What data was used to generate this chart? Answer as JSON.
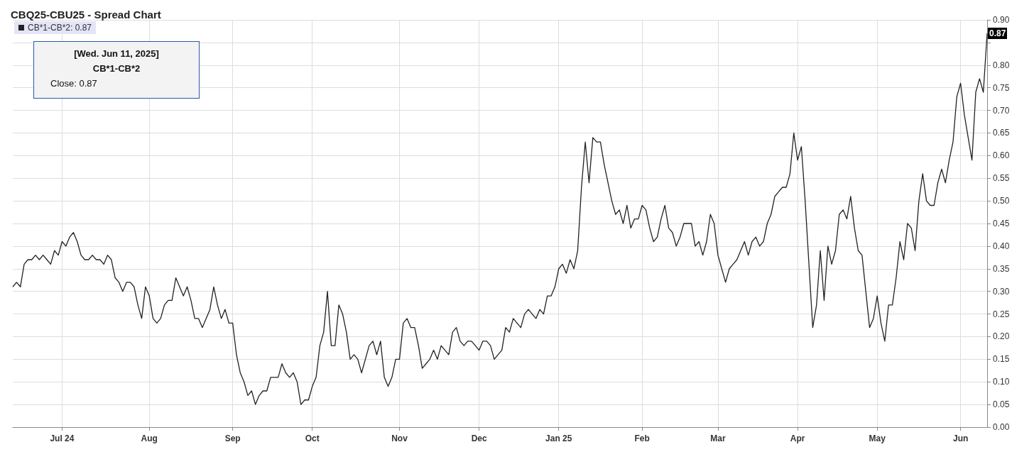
{
  "chart_data": {
    "type": "line",
    "title": "CBQ25-CBU25 - Spread Chart",
    "categories": [
      null,
      null,
      null,
      null,
      null,
      null,
      null,
      null,
      null,
      null,
      null,
      null,
      null,
      "Jul 24",
      null,
      null,
      null,
      null,
      null,
      null,
      null,
      null,
      null,
      null,
      null,
      null,
      null,
      null,
      null,
      null,
      null,
      null,
      null,
      null,
      null,
      null,
      "Aug",
      null,
      null,
      null,
      null,
      null,
      null,
      null,
      null,
      null,
      null,
      null,
      null,
      null,
      null,
      null,
      null,
      null,
      null,
      null,
      null,
      null,
      "Sep",
      null,
      null,
      null,
      null,
      null,
      null,
      null,
      null,
      null,
      null,
      null,
      null,
      null,
      null,
      null,
      null,
      null,
      null,
      null,
      null,
      "Oct",
      null,
      null,
      null,
      null,
      null,
      null,
      null,
      null,
      null,
      null,
      null,
      null,
      null,
      null,
      null,
      null,
      null,
      null,
      null,
      null,
      null,
      null,
      "Nov",
      null,
      null,
      null,
      null,
      null,
      null,
      null,
      null,
      null,
      null,
      null,
      null,
      null,
      null,
      null,
      null,
      null,
      null,
      null,
      null,
      "Dec",
      null,
      null,
      null,
      null,
      null,
      null,
      null,
      null,
      null,
      null,
      null,
      null,
      null,
      null,
      null,
      null,
      null,
      null,
      null,
      null,
      "Jan 25",
      null,
      null,
      null,
      null,
      null,
      null,
      null,
      null,
      null,
      null,
      null,
      null,
      null,
      null,
      null,
      null,
      null,
      null,
      null,
      null,
      null,
      "Feb",
      null,
      null,
      null,
      null,
      null,
      null,
      null,
      null,
      null,
      null,
      null,
      null,
      null,
      null,
      null,
      null,
      null,
      null,
      null,
      "Mar",
      null,
      null,
      null,
      null,
      null,
      null,
      null,
      null,
      null,
      null,
      null,
      null,
      null,
      null,
      null,
      null,
      null,
      null,
      null,
      null,
      "Apr",
      null,
      null,
      null,
      null,
      null,
      null,
      null,
      null,
      null,
      null,
      null,
      null,
      null,
      null,
      null,
      null,
      null,
      null,
      null,
      null,
      "May",
      null,
      null,
      null,
      null,
      null,
      null,
      null,
      null,
      null,
      null,
      null,
      null,
      null,
      null,
      null,
      null,
      null,
      null,
      null,
      null,
      null,
      "Jun",
      null,
      null,
      null,
      null,
      null,
      null,
      null
    ],
    "series": [
      {
        "name": "CB*1-CB*2: 0.87",
        "color": "#222222",
        "values": [
          0.31,
          0.32,
          0.31,
          0.36,
          0.37,
          0.37,
          0.38,
          0.37,
          0.38,
          0.37,
          0.36,
          0.39,
          0.38,
          0.41,
          0.4,
          0.42,
          0.43,
          0.41,
          0.38,
          0.37,
          0.37,
          0.38,
          0.37,
          0.37,
          0.36,
          0.38,
          0.37,
          0.33,
          0.32,
          0.3,
          0.32,
          0.32,
          0.31,
          0.27,
          0.24,
          0.31,
          0.29,
          0.24,
          0.23,
          0.24,
          0.27,
          0.28,
          0.28,
          0.33,
          0.31,
          0.29,
          0.31,
          0.28,
          0.24,
          0.24,
          0.22,
          0.24,
          0.26,
          0.31,
          0.27,
          0.24,
          0.26,
          0.23,
          0.23,
          0.16,
          0.12,
          0.1,
          0.07,
          0.08,
          0.05,
          0.07,
          0.08,
          0.08,
          0.11,
          0.11,
          0.11,
          0.14,
          0.12,
          0.11,
          0.12,
          0.1,
          0.05,
          0.06,
          0.06,
          0.09,
          0.11,
          0.18,
          0.21,
          0.3,
          0.18,
          0.18,
          0.27,
          0.25,
          0.21,
          0.15,
          0.16,
          0.15,
          0.12,
          0.15,
          0.18,
          0.19,
          0.16,
          0.19,
          0.11,
          0.09,
          0.11,
          0.15,
          0.15,
          0.23,
          0.24,
          0.22,
          0.22,
          0.18,
          0.13,
          0.14,
          0.15,
          0.17,
          0.15,
          0.18,
          0.17,
          0.16,
          0.21,
          0.22,
          0.19,
          0.18,
          0.19,
          0.19,
          0.18,
          0.17,
          0.19,
          0.19,
          0.18,
          0.15,
          0.16,
          0.17,
          0.22,
          0.21,
          0.24,
          0.23,
          0.22,
          0.25,
          0.26,
          0.25,
          0.24,
          0.26,
          0.25,
          0.29,
          0.29,
          0.31,
          0.35,
          0.36,
          0.34,
          0.37,
          0.35,
          0.39,
          0.53,
          0.63,
          0.54,
          0.64,
          0.63,
          0.63,
          0.58,
          0.54,
          0.5,
          0.47,
          0.48,
          0.45,
          0.49,
          0.44,
          0.46,
          0.46,
          0.49,
          0.48,
          0.44,
          0.41,
          0.42,
          0.46,
          0.49,
          0.44,
          0.43,
          0.4,
          0.42,
          0.45,
          0.45,
          0.45,
          0.4,
          0.41,
          0.38,
          0.41,
          0.47,
          0.45,
          0.38,
          0.35,
          0.32,
          0.35,
          0.36,
          0.37,
          0.39,
          0.41,
          0.38,
          0.41,
          0.42,
          0.4,
          0.41,
          0.45,
          0.47,
          0.51,
          0.52,
          0.53,
          0.53,
          0.56,
          0.65,
          0.59,
          0.62,
          0.5,
          0.36,
          0.22,
          0.27,
          0.39,
          0.28,
          0.4,
          0.36,
          0.39,
          0.47,
          0.48,
          0.46,
          0.51,
          0.44,
          0.39,
          0.38,
          0.3,
          0.22,
          0.24,
          0.29,
          0.23,
          0.19,
          0.27,
          0.27,
          0.33,
          0.41,
          0.37,
          0.45,
          0.44,
          0.39,
          0.5,
          0.56,
          0.5,
          0.49,
          0.49,
          0.54,
          0.57,
          0.54,
          0.59,
          0.63,
          0.73,
          0.76,
          0.69,
          0.64,
          0.59,
          0.74,
          0.77,
          0.74,
          0.87
        ]
      }
    ],
    "ylim": [
      0,
      0.9
    ],
    "yticks": [
      {
        "value": 0,
        "label": "0.00"
      },
      {
        "value": 0.05,
        "label": "0.05"
      },
      {
        "value": 0.1,
        "label": "0.10"
      },
      {
        "value": 0.15,
        "label": "0.15"
      },
      {
        "value": 0.2,
        "label": "0.20"
      },
      {
        "value": 0.25,
        "label": "0.25"
      },
      {
        "value": 0.3,
        "label": "0.30"
      },
      {
        "value": 0.35,
        "label": "0.35"
      },
      {
        "value": 0.4,
        "label": "0.40"
      },
      {
        "value": 0.45,
        "label": "0.45"
      },
      {
        "value": 0.5,
        "label": "0.50"
      },
      {
        "value": 0.55,
        "label": "0.55"
      },
      {
        "value": 0.6,
        "label": "0.60"
      },
      {
        "value": 0.65,
        "label": "0.65"
      },
      {
        "value": 0.7,
        "label": "0.70"
      },
      {
        "value": 0.75,
        "label": "0.75"
      },
      {
        "value": 0.8,
        "label": "0.80"
      },
      {
        "value": 0.85,
        "label": null
      },
      {
        "value": 0.9,
        "label": "0.90"
      }
    ],
    "grid": true,
    "legend": "top left",
    "annotations": [
      "[Wed. Jun 11, 2025]",
      "CB*1-CB*2",
      "Close: 0.87",
      {
        "text": "0.87",
        "y": 0.87
      }
    ]
  }
}
